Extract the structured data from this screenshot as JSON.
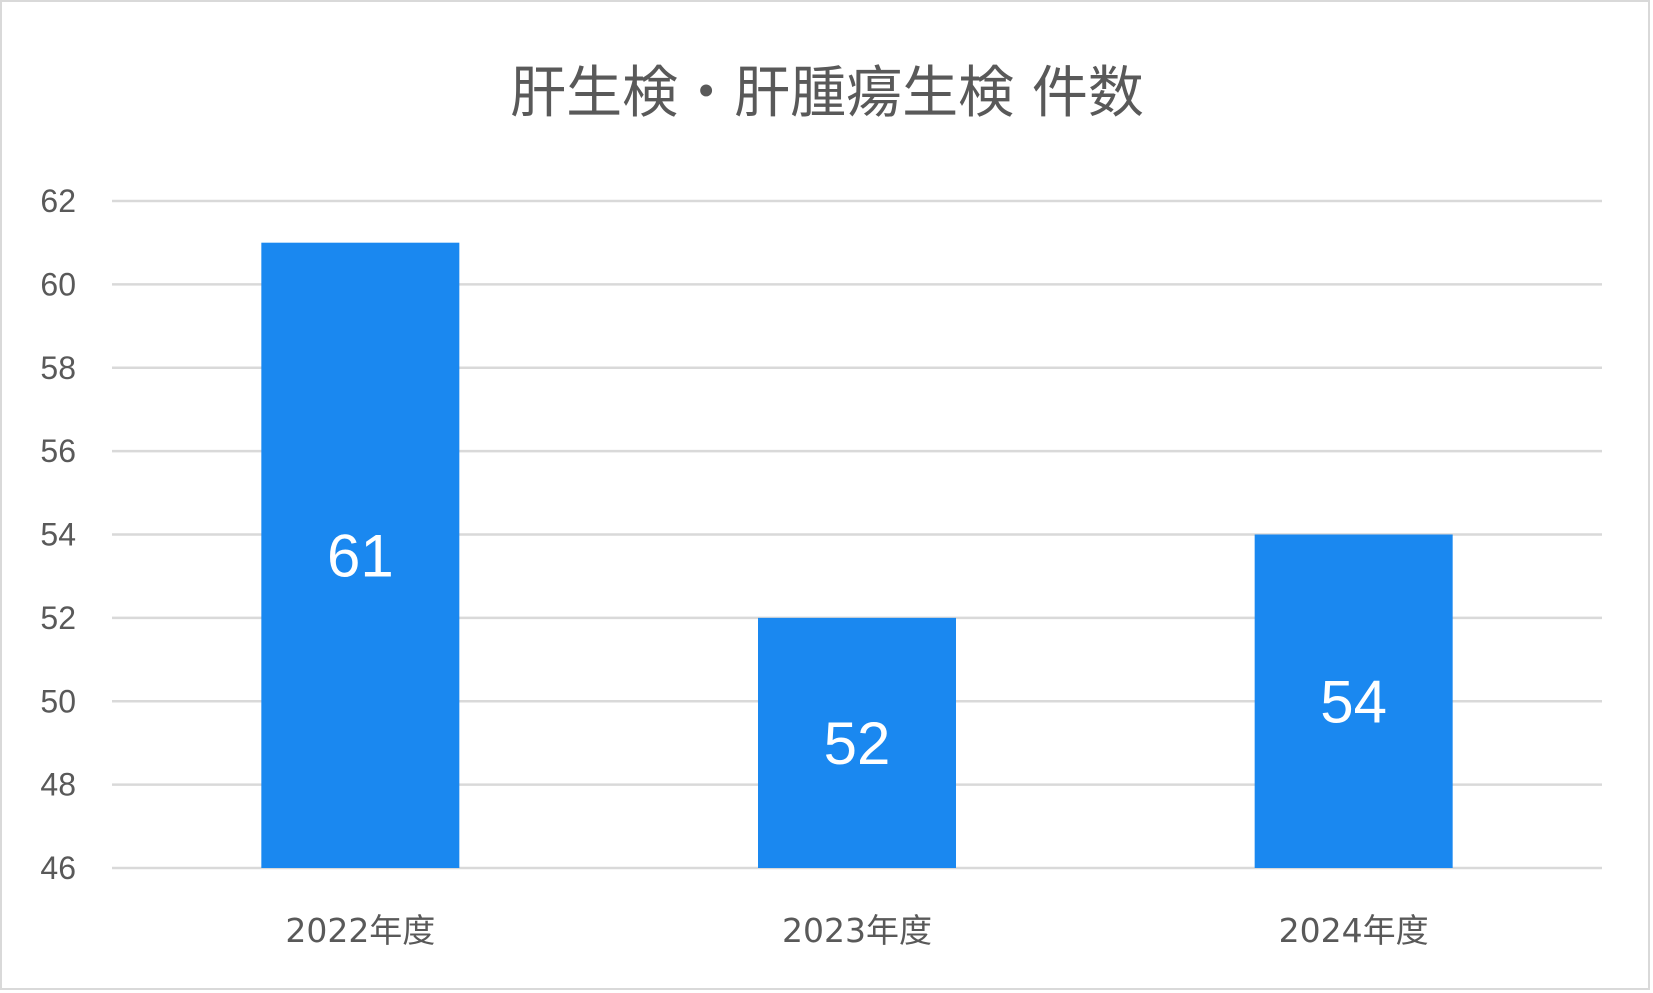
{
  "chart_data": {
    "type": "bar",
    "title": "肝生検・肝腫瘍生検 件数",
    "categories": [
      "2022年度",
      "2023年度",
      "2024年度"
    ],
    "values": [
      61,
      52,
      54
    ],
    "ylim": [
      46,
      62
    ],
    "yticks": [
      46,
      48,
      50,
      52,
      54,
      56,
      58,
      60,
      62
    ],
    "data_labels": [
      "61",
      "52",
      "54"
    ],
    "grid": true,
    "legend": "none",
    "bar_color": "#1a88f0"
  }
}
